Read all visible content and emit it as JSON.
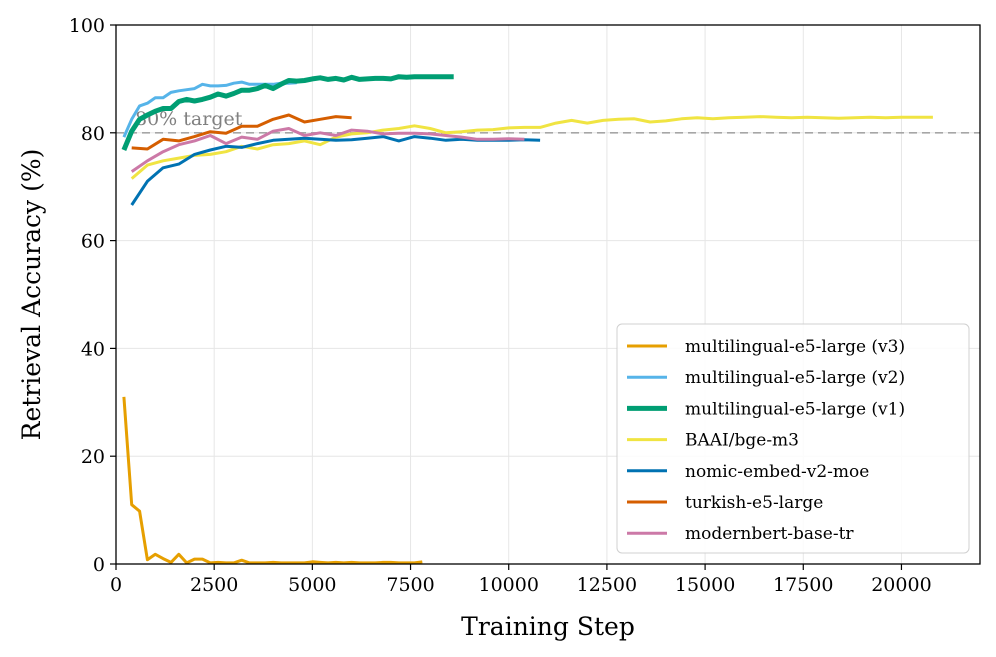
{
  "chart_data": {
    "type": "line",
    "title": "",
    "xlabel": "Training Step",
    "ylabel": "Retrieval Accuracy (%)",
    "xlim": [
      0,
      22000
    ],
    "ylim": [
      0,
      100
    ],
    "xticks": [
      0,
      2500,
      5000,
      7500,
      10000,
      12500,
      15000,
      17500,
      20000
    ],
    "yticks": [
      0,
      20,
      40,
      60,
      80,
      100
    ],
    "grid": true,
    "legend_position": "lower-right",
    "reference_line": {
      "y": 80,
      "label": "80% target",
      "color": "#a6a6a6"
    },
    "series": [
      {
        "name": "multilingual-e5-large (v3)",
        "color": "#e69f00",
        "x": [
          200,
          400,
          600,
          800,
          1000,
          1200,
          1400,
          1600,
          1800,
          2000,
          2200,
          2400,
          2600,
          2800,
          3000,
          3200,
          3400,
          3600,
          3800,
          4000,
          4200,
          4400,
          4600,
          4800,
          5000,
          5200,
          5400,
          5600,
          5800,
          6000,
          6200,
          6400,
          6600,
          6800,
          7000,
          7200,
          7400,
          7600,
          7800
        ],
        "y": [
          31,
          11,
          9.8,
          0.8,
          1.8,
          1,
          0.3,
          1.8,
          0.2,
          0.9,
          0.9,
          0.2,
          0.3,
          0.2,
          0.2,
          0.7,
          0.2,
          0.2,
          0.2,
          0.3,
          0.2,
          0.2,
          0.2,
          0.2,
          0.4,
          0.3,
          0.2,
          0.3,
          0.2,
          0.3,
          0.2,
          0.2,
          0.2,
          0.3,
          0.3,
          0.2,
          0.2,
          0.2,
          0.4
        ]
      },
      {
        "name": "multilingual-e5-large (v2)",
        "color": "#56b4e9",
        "x": [
          200,
          400,
          600,
          800,
          1000,
          1200,
          1400,
          1600,
          1800,
          2000,
          2200,
          2400,
          2600,
          2800,
          3000,
          3200,
          3400,
          3600,
          3800,
          4000,
          4200,
          4400,
          4600
        ],
        "y": [
          79.2,
          82.5,
          85,
          85.5,
          86.5,
          86.5,
          87.5,
          87.8,
          88,
          88.2,
          89,
          88.7,
          88.7,
          88.8,
          89.2,
          89.4,
          89,
          89,
          89,
          89,
          89.2,
          89.2,
          89.3
        ]
      },
      {
        "name": "multilingual-e5-large (v1)",
        "color": "#009e73",
        "x": [
          200,
          400,
          600,
          800,
          1000,
          1200,
          1400,
          1600,
          1800,
          2000,
          2200,
          2400,
          2600,
          2800,
          3000,
          3200,
          3400,
          3600,
          3800,
          4000,
          4200,
          4400,
          4600,
          4800,
          5000,
          5200,
          5400,
          5600,
          5800,
          6000,
          6200,
          6400,
          6600,
          6800,
          7000,
          7200,
          7400,
          7600,
          7800,
          8000,
          8200,
          8400,
          8600
        ],
        "y": [
          76.8,
          80.3,
          82.5,
          83.3,
          84,
          84.5,
          84.5,
          85.8,
          86.2,
          85.9,
          86.2,
          86.6,
          87.2,
          86.8,
          87.3,
          87.9,
          87.9,
          88.2,
          88.8,
          88.2,
          89,
          89.7,
          89.6,
          89.7,
          90,
          90.2,
          89.9,
          90.1,
          89.8,
          90.3,
          89.9,
          90,
          90.1,
          90.1,
          90,
          90.4,
          90.3,
          90.4,
          90.4,
          90.4,
          90.4,
          90.4,
          90.4
        ]
      },
      {
        "name": "BAAI/bge-m3",
        "color": "#f0e442",
        "x": [
          400,
          800,
          1200,
          1600,
          2000,
          2400,
          2800,
          3200,
          3600,
          4000,
          4400,
          4800,
          5200,
          5600,
          6000,
          6400,
          6800,
          7200,
          7600,
          8000,
          8400,
          8800,
          9200,
          9600,
          10000,
          10400,
          10800,
          11200,
          11600,
          12000,
          12400,
          12800,
          13200,
          13600,
          14000,
          14400,
          14800,
          15200,
          15600,
          16000,
          16400,
          16800,
          17200,
          17600,
          18000,
          18400,
          18800,
          19200,
          19600,
          20000,
          20400,
          20800
        ],
        "y": [
          71.5,
          74,
          74.8,
          75.3,
          75.8,
          76,
          76.5,
          77.5,
          77,
          77.8,
          78,
          78.5,
          77.8,
          79.2,
          79.8,
          80,
          80.5,
          80.8,
          81.3,
          80.8,
          80,
          80.2,
          80.5,
          80.6,
          80.9,
          81,
          81,
          81.8,
          82.3,
          81.8,
          82.3,
          82.5,
          82.6,
          82,
          82.2,
          82.6,
          82.8,
          82.6,
          82.8,
          82.9,
          83,
          82.9,
          82.8,
          82.9,
          82.8,
          82.7,
          82.8,
          82.9,
          82.8,
          82.9,
          82.9,
          82.9
        ]
      },
      {
        "name": "nomic-embed-v2-moe",
        "color": "#0072b2",
        "x": [
          400,
          800,
          1200,
          1600,
          2000,
          2400,
          2800,
          3200,
          3600,
          4000,
          4400,
          4800,
          5200,
          5600,
          6000,
          6400,
          6800,
          7200,
          7600,
          8000,
          8400,
          8800,
          9200,
          9600,
          10000,
          10400,
          10800
        ],
        "y": [
          66.6,
          71,
          73.5,
          74.2,
          76,
          76.8,
          77.5,
          77.3,
          78,
          78.6,
          78.8,
          79,
          78.8,
          78.6,
          78.7,
          79,
          79.3,
          78.5,
          79.3,
          79,
          78.6,
          78.8,
          78.6,
          78.6,
          78.6,
          78.7,
          78.6
        ]
      },
      {
        "name": "turkish-e5-large",
        "color": "#d55e00",
        "x": [
          400,
          800,
          1200,
          1600,
          2000,
          2400,
          2800,
          3200,
          3600,
          4000,
          4400,
          4800,
          5200,
          5600,
          6000
        ],
        "y": [
          77.2,
          77,
          78.8,
          78.5,
          79.3,
          80.2,
          79.9,
          81.2,
          81.2,
          82.5,
          83.3,
          82,
          82.5,
          83,
          82.8
        ]
      },
      {
        "name": "modernbert-base-tr",
        "color": "#cc79a7",
        "x": [
          400,
          800,
          1200,
          1600,
          2000,
          2400,
          2800,
          3200,
          3600,
          4000,
          4400,
          4800,
          5200,
          5600,
          6000,
          6400,
          6800,
          7200,
          7600,
          8000,
          8400,
          8800,
          9200,
          9600,
          10000,
          10400
        ],
        "y": [
          72.8,
          74.8,
          76.5,
          77.8,
          78.5,
          79.5,
          78,
          79.2,
          78.8,
          80.3,
          80.8,
          79.5,
          80,
          79.5,
          80.5,
          80.3,
          79.8,
          79.9,
          79.9,
          79.8,
          79.5,
          79.2,
          78.8,
          78.8,
          78.9,
          78.8
        ]
      }
    ]
  }
}
